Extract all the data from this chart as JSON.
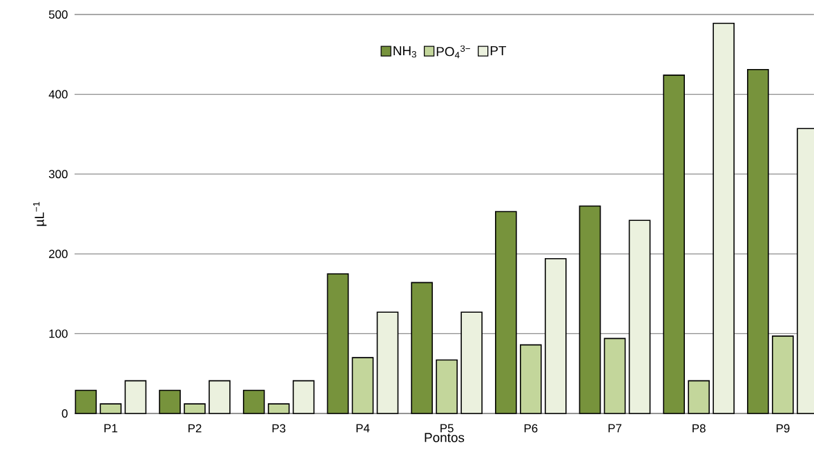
{
  "chart_data": {
    "type": "bar",
    "xlabel": "Pontos",
    "ylabel": "µL$^{−1}$",
    "categories": [
      "P1",
      "P2",
      "P3",
      "P4",
      "P5",
      "P6",
      "P7",
      "P8",
      "P9"
    ],
    "series": [
      {
        "name": "NH$_{3}$",
        "color": "#77933c",
        "values": [
          29,
          29,
          29,
          175,
          164,
          253,
          260,
          424,
          431
        ]
      },
      {
        "name": "PO$_{4}$$^{3−}$",
        "color": "#c3d69b",
        "values": [
          12,
          12,
          12,
          70,
          67,
          86,
          94,
          41,
          97
        ]
      },
      {
        "name": "PT",
        "color": "#ebf1de",
        "values": [
          41,
          41,
          41,
          127,
          127,
          194,
          242,
          489,
          357
        ]
      }
    ],
    "ylim": [
      0,
      500
    ],
    "yticks": [
      0,
      100,
      200,
      300,
      400,
      500
    ],
    "grid": "y",
    "legend": "top"
  }
}
